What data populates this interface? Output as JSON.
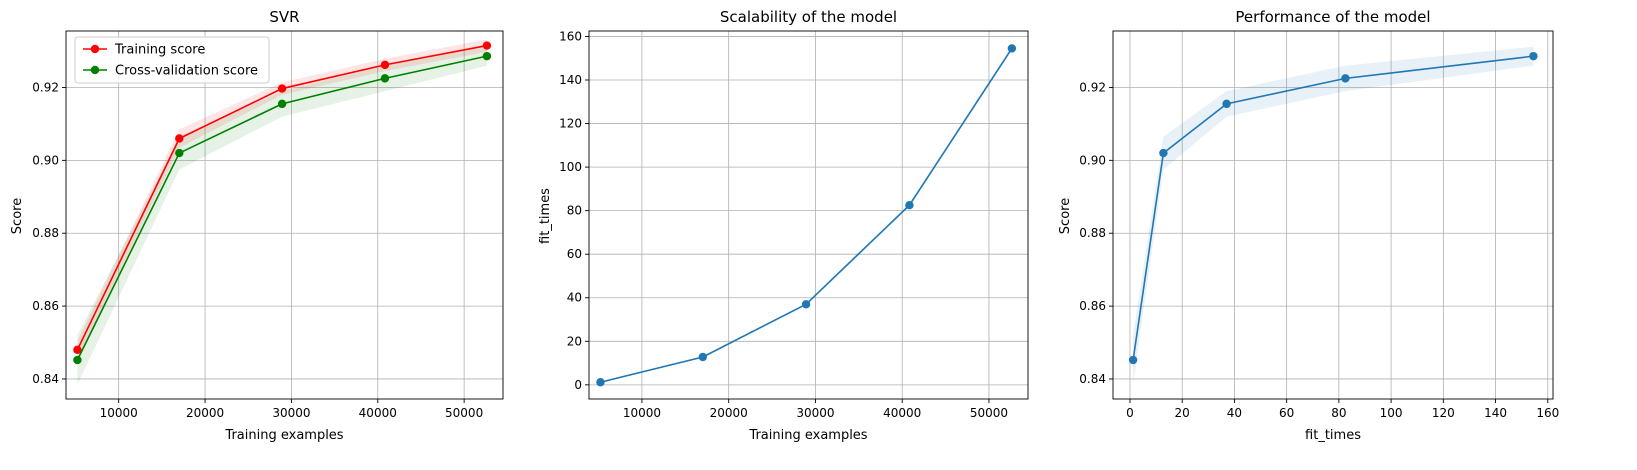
{
  "chart_data": [
    {
      "type": "line",
      "title": "SVR",
      "xlabel": "Training examples",
      "ylabel": "Score",
      "xlim": [
        3900,
        54500
      ],
      "ylim": [
        0.8345,
        0.9355
      ],
      "xticks": [
        10000,
        20000,
        30000,
        40000,
        50000
      ],
      "yticks": [
        0.84,
        0.86,
        0.88,
        0.9,
        0.92
      ],
      "ytick_labels": [
        "0.84",
        "0.86",
        "0.88",
        "0.90",
        "0.92"
      ],
      "grid": true,
      "legend": "top-left",
      "series": [
        {
          "name": "Training score",
          "color": "#ff0000",
          "band_color": "#ff0000",
          "x": [
            5220,
            17020,
            28920,
            40830,
            52640
          ],
          "y": [
            0.848,
            0.906,
            0.9197,
            0.9262,
            0.9315
          ],
          "lower": [
            0.8455,
            0.9035,
            0.918,
            0.9245,
            0.9298
          ],
          "upper": [
            0.8505,
            0.9085,
            0.9214,
            0.9279,
            0.9332
          ]
        },
        {
          "name": "Cross-validation score",
          "color": "#008000",
          "band_color": "#008000",
          "x": [
            5220,
            17020,
            28920,
            40830,
            52640
          ],
          "y": [
            0.8452,
            0.902,
            0.9155,
            0.9225,
            0.9286
          ],
          "lower": [
            0.8385,
            0.8975,
            0.912,
            0.919,
            0.926
          ],
          "upper": [
            0.852,
            0.9065,
            0.919,
            0.926,
            0.9312
          ]
        }
      ]
    },
    {
      "type": "line",
      "title": "Scalability of the model",
      "xlabel": "Training examples",
      "ylabel": "fit_times",
      "xlim": [
        3900,
        54500
      ],
      "ylim": [
        -6.5,
        162.5
      ],
      "xticks": [
        10000,
        20000,
        30000,
        40000,
        50000
      ],
      "yticks": [
        0,
        20,
        40,
        60,
        80,
        100,
        120,
        140,
        160
      ],
      "ytick_labels": [
        "0",
        "20",
        "40",
        "60",
        "80",
        "100",
        "120",
        "140",
        "160"
      ],
      "grid": true,
      "series": [
        {
          "color": "#1f77b4",
          "band_color": "#1f77b4",
          "x": [
            5220,
            17020,
            28920,
            40830,
            52640
          ],
          "y": [
            1.2,
            12.8,
            37.0,
            82.5,
            154.5
          ],
          "lower": [
            1.0,
            12.4,
            36.3,
            81.8,
            153.7
          ],
          "upper": [
            1.4,
            13.2,
            37.7,
            83.2,
            155.3
          ]
        }
      ]
    },
    {
      "type": "line",
      "title": "Performance of the model",
      "xlabel": "fit_times",
      "ylabel": "Score",
      "xlim": [
        -6.5,
        162.0
      ],
      "ylim": [
        0.8345,
        0.9355
      ],
      "xticks": [
        0,
        20,
        40,
        60,
        80,
        100,
        120,
        140,
        160
      ],
      "yticks": [
        0.84,
        0.86,
        0.88,
        0.9,
        0.92
      ],
      "ytick_labels": [
        "0.84",
        "0.86",
        "0.88",
        "0.90",
        "0.92"
      ],
      "grid": true,
      "series": [
        {
          "color": "#1f77b4",
          "band_color": "#1f77b4",
          "x": [
            1.2,
            12.8,
            37.0,
            82.5,
            154.5
          ],
          "y": [
            0.8452,
            0.902,
            0.9155,
            0.9225,
            0.9286
          ],
          "lower": [
            0.8385,
            0.8975,
            0.912,
            0.919,
            0.926
          ],
          "upper": [
            0.852,
            0.9065,
            0.919,
            0.926,
            0.9312
          ]
        }
      ]
    }
  ]
}
